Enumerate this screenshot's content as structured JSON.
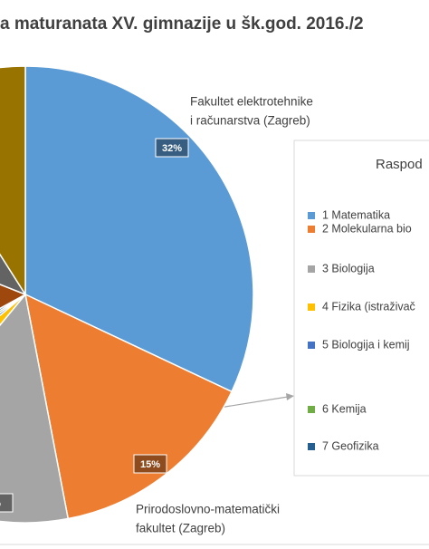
{
  "chart_data": {
    "type": "pie",
    "title": "a maturanata XV. gimnazije u šk.god. 2016./2",
    "legend_title": "Raspod",
    "categories": [
      "1 Matematika",
      "2 Molekularna bio",
      "3 Biologija",
      "4 Fizika (istraživač",
      "5 Biologija i kemij",
      "6 Kemija",
      "7 Geofizika",
      null,
      null,
      null
    ],
    "values": [
      32,
      15,
      14,
      3,
      1,
      1,
      1,
      14,
      10,
      9
    ],
    "value_labels": [
      "32%",
      "15%",
      "%",
      null,
      null,
      null,
      null,
      null,
      null,
      null
    ],
    "colors": [
      "#5b9bd5",
      "#ed7d31",
      "#a5a5a5",
      "#ffc000",
      "#4472c4",
      "#70ad47",
      "#255e91",
      "#9e480e",
      "#636363",
      "#997300"
    ],
    "annotations": [
      [
        "Fakultet elektrotehnike",
        "i računarstva (Zagreb)"
      ],
      [
        "Prirodoslovno-matematički",
        "fakultet (Zagreb)"
      ]
    ],
    "legend": "right"
  }
}
